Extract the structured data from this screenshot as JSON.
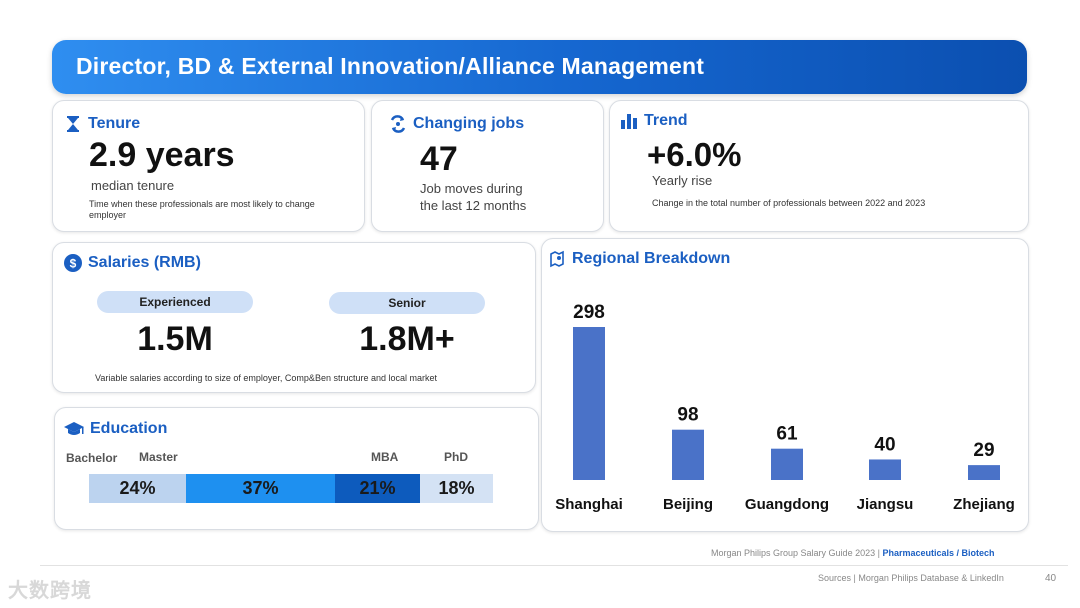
{
  "banner": {
    "title": "Director, BD & External Innovation/Alliance Management"
  },
  "tenure": {
    "heading": "Tenure",
    "value": "2.9 years",
    "caption": "median tenure",
    "note": "Time when these professionals are most likely to  change employer"
  },
  "changing_jobs": {
    "heading": "Changing jobs",
    "value": "47",
    "caption_line1": "Job moves during",
    "caption_line2": "the last 12 months"
  },
  "trend": {
    "heading": "Trend",
    "value": "+6.0%",
    "caption": "Yearly rise",
    "note": "Change in the total number of professionals between 2022 and 2023"
  },
  "salaries": {
    "heading": "Salaries (RMB)",
    "items": [
      {
        "label": "Experienced",
        "value": "1.5M"
      },
      {
        "label": "Senior",
        "value": "1.8M+"
      }
    ],
    "note": "Variable salaries according to size of employer, Comp&Ben structure and local market"
  },
  "education": {
    "heading": "Education",
    "segments": [
      {
        "label": "Bachelor",
        "value_text": "24%",
        "share": 0.24,
        "color": "#bcd3ef"
      },
      {
        "label": "Master",
        "value_text": "37%",
        "share": 0.37,
        "color": "#1e90f0"
      },
      {
        "label": "MBA",
        "value_text": "21%",
        "share": 0.21,
        "color": "#0d5bbd"
      },
      {
        "label": "PhD",
        "value_text": "18%",
        "share": 0.18,
        "color": "#d4e2f4"
      }
    ]
  },
  "regional": {
    "heading": "Regional Breakdown"
  },
  "chart_data": {
    "type": "bar",
    "title": "Regional Breakdown",
    "categories": [
      "Shanghai",
      "Beijing",
      "Guangdong",
      "Jiangsu",
      "Zhejiang"
    ],
    "values": [
      298,
      98,
      61,
      40,
      29
    ],
    "bar_color": "#4a72c8",
    "grid": false,
    "data_labels": true
  },
  "footer": {
    "guide": "Morgan Philips Group Salary Guide 2023 |",
    "sector": "Pharmaceuticals / Biotech",
    "sources": "Sources | Morgan Philips Database & LinkedIn",
    "page_number": "40"
  },
  "watermark": {
    "text": "大数跨境"
  },
  "colors": {
    "accent": "#1b5fc2",
    "banner_start": "#2f8ef0",
    "banner_end": "#0b4fb0"
  }
}
